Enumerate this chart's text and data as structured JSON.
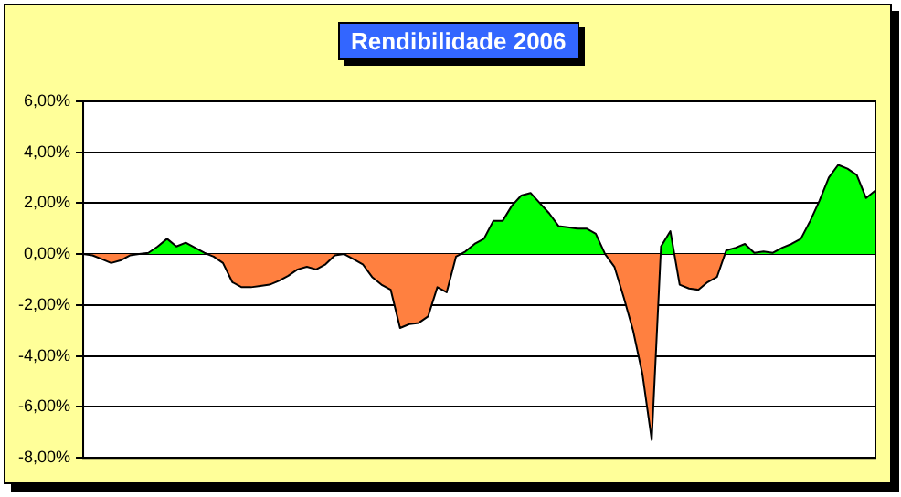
{
  "chart_data": {
    "type": "area",
    "title": "Rendibilidade 2006",
    "categories": [
      null,
      null,
      null,
      null,
      null,
      null,
      null,
      null,
      null,
      null,
      null,
      null,
      null,
      null,
      null,
      null,
      null,
      null,
      null,
      null,
      null,
      null,
      null,
      null,
      null,
      null,
      null,
      null,
      null,
      null,
      null,
      null,
      null,
      null,
      null,
      null,
      null,
      null,
      null,
      null,
      null,
      null,
      null,
      null,
      null,
      null,
      null,
      null,
      null,
      null,
      null,
      null,
      null,
      null,
      null,
      null,
      null,
      null,
      null,
      null,
      null,
      null,
      null,
      null,
      null,
      null,
      null,
      null,
      null,
      null,
      null,
      null,
      null,
      null,
      null,
      null,
      null,
      null,
      null,
      null,
      null,
      null,
      null,
      null,
      null,
      null
    ],
    "series": [
      {
        "values": [
          0,
          -0.05,
          -0.2,
          -0.35,
          -0.25,
          -0.05,
          0,
          0.05,
          0.3,
          0.6,
          0.3,
          0.45,
          0.25,
          0.05,
          -0.1,
          -0.35,
          -1.1,
          -1.3,
          -1.3,
          -1.25,
          -1.2,
          -1.05,
          -0.85,
          -0.6,
          -0.5,
          -0.6,
          -0.4,
          -0.05,
          0,
          -0.2,
          -0.4,
          -0.9,
          -1.2,
          -1.4,
          -2.9,
          -2.75,
          -2.7,
          -2.45,
          -1.3,
          -1.5,
          -0.1,
          0.1,
          0.4,
          0.6,
          1.3,
          1.3,
          1.9,
          2.3,
          2.4,
          2.0,
          1.6,
          1.1,
          1.05,
          1.0,
          1.0,
          0.8,
          0,
          -0.5,
          -1.7,
          -3.0,
          -4.7,
          -7.3,
          0.3,
          0.9,
          -1.2,
          -1.35,
          -1.4,
          -1.1,
          -0.9,
          0.15,
          0.25,
          0.4,
          0.05,
          0.1,
          0.05,
          0.25,
          0.4,
          0.6,
          1.3,
          2.1,
          3.0,
          3.5,
          3.35,
          3.1,
          2.2,
          2.5
        ],
        "colors": [
          null,
          "#ff8040",
          "#ff8040",
          "#ff8040",
          "#ff8040",
          "#ff8040",
          null,
          "#00ff00",
          "#00ff00",
          "#00ff00",
          "#00ff00",
          "#00ff00",
          "#00ff00",
          "#00ff00",
          "#ff8040",
          "#ff8040",
          "#ff8040",
          "#ff8040",
          "#ff8040",
          "#ff8040",
          "#ff8040",
          "#ff8040",
          "#ff8040",
          "#ff8040",
          "#ff8040",
          "#ff8040",
          "#ff8040",
          "#ff8040",
          null,
          "#ff8040",
          "#ff8040",
          "#ff8040",
          "#ff8040",
          "#ff8040",
          "#ff8040",
          "#ff8040",
          "#ff8040",
          "#ff8040",
          "#ff8040",
          "#ff8040",
          "#ff8040",
          "#00ff00",
          "#00ff00",
          "#00ff00",
          "#00ff00",
          "#00ff00",
          "#00ff00",
          "#00ff00",
          "#00ff00",
          "#00ff00",
          "#00ff00",
          "#00ff00",
          "#00ff00",
          "#00ff00",
          "#00ff00",
          "#00ff00",
          null,
          "#ff8040",
          "#ff8040",
          "#ff8040",
          "#ff8040",
          "#ff8040",
          "#00ff00",
          "#00ff00",
          "#ff8040",
          "#ff8040",
          "#ff8040",
          "#ff8040",
          "#ff8040",
          "#00ff00",
          "#00ff00",
          "#00ff00",
          "#00ff00",
          "#00ff00",
          "#00ff00",
          "#00ff00",
          "#00ff00",
          "#00ff00",
          "#00ff00",
          "#00ff00",
          "#00ff00",
          "#00ff00",
          "#00ff00",
          "#00ff00",
          "#00ff00",
          "#00ff00"
        ]
      }
    ],
    "ylim": [
      -8,
      6
    ],
    "yticks": [
      {
        "value": 6,
        "label": "6,00%"
      },
      {
        "value": 4,
        "label": "4,00%"
      },
      {
        "value": 2,
        "label": "2,00%"
      },
      {
        "value": 0,
        "label": "0,00%"
      },
      {
        "value": -2,
        "label": "-2,00%"
      },
      {
        "value": -4,
        "label": "-4,00%"
      },
      {
        "value": -6,
        "label": "-6,00%"
      },
      {
        "value": -8,
        "label": "-8,00%"
      }
    ],
    "grid": "y",
    "legend": false,
    "tick_labels": "y"
  }
}
